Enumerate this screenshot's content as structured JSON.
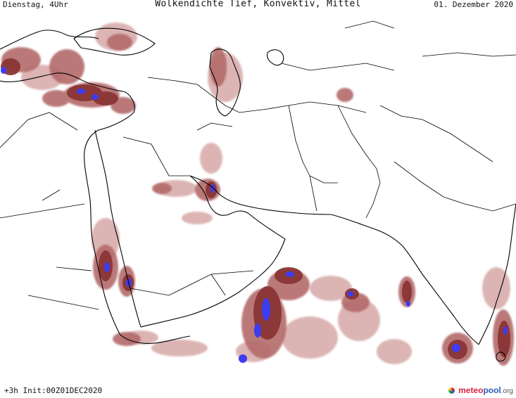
{
  "header": {
    "left": "Dienstag, 4Uhr",
    "center": "Wolkendichte  Tief, Konvektiv, Mittel",
    "right": "01. Dezember 2020"
  },
  "footer": {
    "left": "+3h Init:00Z01DEC2020",
    "logo_meteo": "meteo",
    "logo_pool": "pool",
    "logo_org": ".org"
  },
  "colors": {
    "background": "#ffffff",
    "border": "#000000",
    "cloud_light": "#d7a8a8",
    "cloud_mid": "#b36b6b",
    "cloud_dark": "#8a3535",
    "cloud_core": "#3c3cf0"
  }
}
